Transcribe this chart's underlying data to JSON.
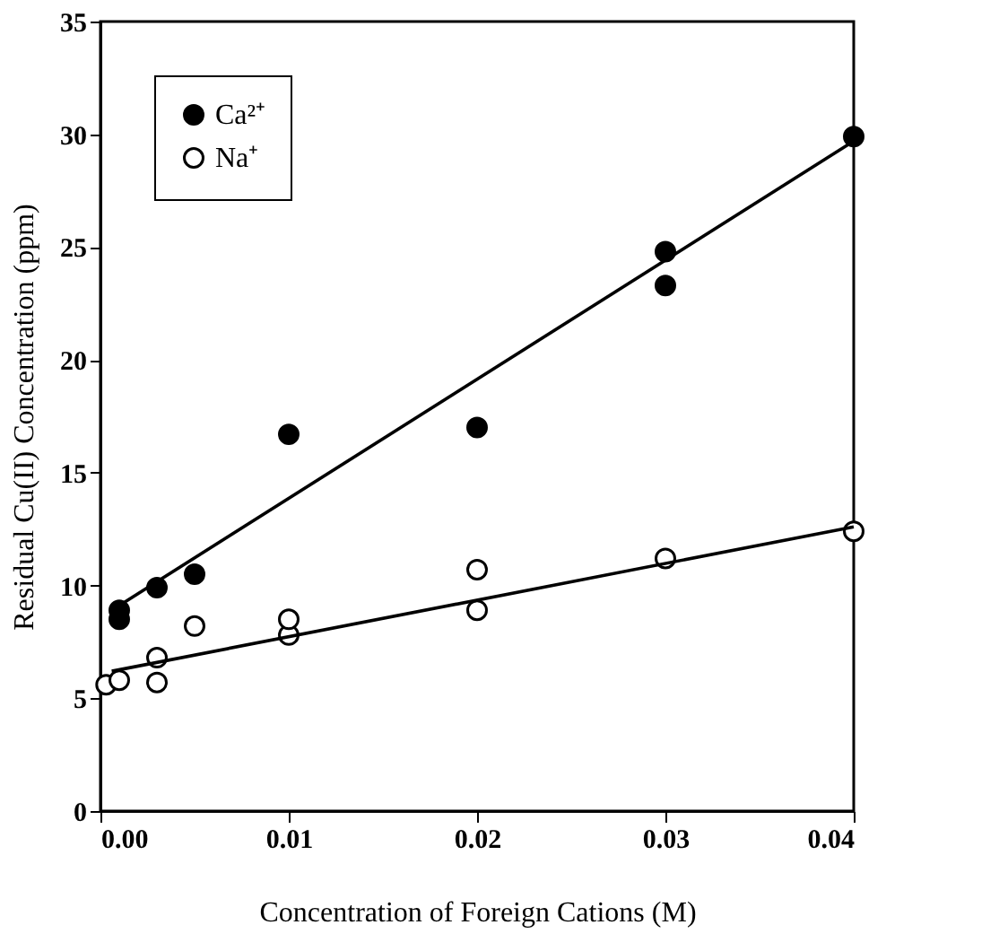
{
  "chart_data": {
    "type": "scatter",
    "xlabel": "Concentration of Foreign Cations (M)",
    "ylabel": "Residual Cu(II) Concentration (ppm)",
    "xlim": [
      0,
      0.04
    ],
    "ylim": [
      0,
      35
    ],
    "xticks": [
      {
        "value": 0,
        "label": "0.00"
      },
      {
        "value": 0.01,
        "label": "0.01"
      },
      {
        "value": 0.02,
        "label": "0.02"
      },
      {
        "value": 0.03,
        "label": "0.03"
      },
      {
        "value": 0.04,
        "label": "0.04"
      }
    ],
    "yticks": [
      0,
      5,
      10,
      15,
      20,
      25,
      30,
      35
    ],
    "grid": false,
    "legend": "top left",
    "marker": "circle",
    "series": [
      {
        "name": "Ca²⁺",
        "color": "#000000",
        "x": [
          0.001,
          0.001,
          0.003,
          0.005,
          0.01,
          0.02,
          0.03,
          0.03,
          0.04
        ],
        "values": [
          8.5,
          8.9,
          9.9,
          10.5,
          16.7,
          17.0,
          23.3,
          24.8,
          29.9
        ]
      },
      {
        "name": "Na⁺",
        "color": "#000000",
        "x": [
          0.0003,
          0.001,
          0.003,
          0.003,
          0.005,
          0.01,
          0.01,
          0.02,
          0.02,
          0.03,
          0.04
        ],
        "values": [
          5.6,
          5.8,
          5.7,
          6.8,
          8.2,
          7.8,
          8.5,
          8.9,
          10.7,
          11.2,
          12.4
        ]
      },
      {
        "type": "line",
        "marker": "none",
        "color": "#000000",
        "x": [
          0.0006,
          0.04
        ],
        "values": [
          8.9,
          29.7
        ]
      },
      {
        "type": "line",
        "marker": "none",
        "color": "#000000",
        "x": [
          0.0006,
          0.04
        ],
        "values": [
          6.2,
          12.6
        ]
      }
    ]
  }
}
